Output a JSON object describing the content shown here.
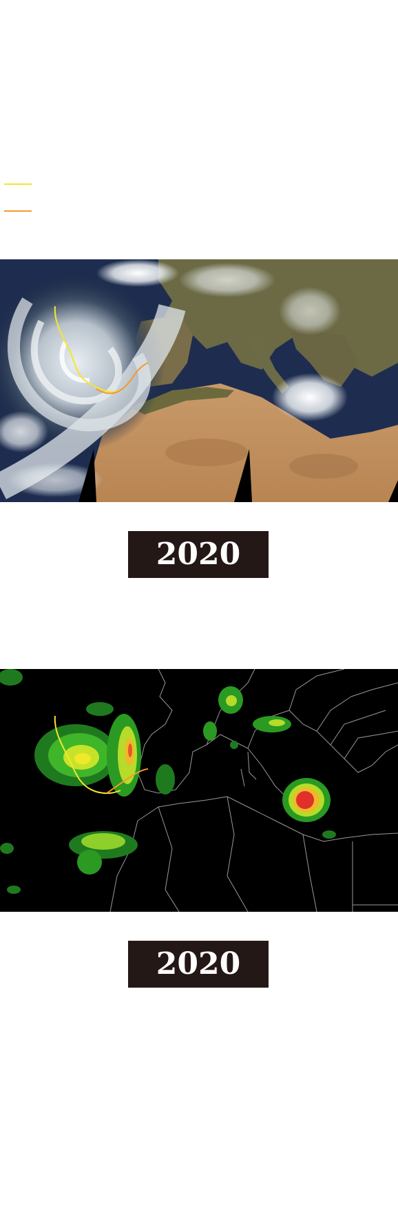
{
  "colors": {
    "track_primary": "#f5e62a",
    "track_secondary": "#f39a2b",
    "badge_background": "#231816",
    "badge_text": "#ffffff"
  },
  "legend": {
    "items": [
      {
        "icon": "yellow-line-swatch",
        "color": "#f5e62a"
      },
      {
        "icon": "orange-line-swatch",
        "color": "#f39a2b"
      }
    ]
  },
  "panels": [
    {
      "map": "satellite-true-color",
      "year_label": "2020"
    },
    {
      "map": "precipitation-radar",
      "year_label": "2020"
    }
  ]
}
